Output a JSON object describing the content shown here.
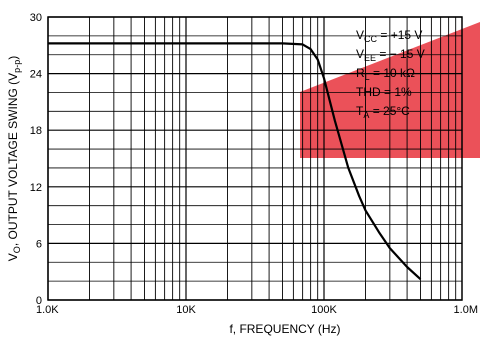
{
  "chart_data": {
    "type": "line",
    "xlabel": "f, FREQUENCY (Hz)",
    "ylabel": "V",
    "ylabel_parts": {
      "main": "V",
      "main_sub": "O",
      "rest": ", OUTPUT VOLTAGE SWING (V",
      "rest_sub": "p-p",
      "close": ")"
    },
    "xscale": "log",
    "xlim": [
      1000,
      1000000
    ],
    "ylim": [
      0,
      30
    ],
    "x_tick_values": [
      1000,
      10000,
      100000,
      1000000
    ],
    "x_tick_labels": [
      "1.0K",
      "10K",
      "100K",
      "1.0M"
    ],
    "y_tick_values": [
      0,
      6,
      12,
      18,
      24,
      30
    ],
    "y_tick_labels": [
      "0",
      "6",
      "12",
      "18",
      "24",
      "30"
    ],
    "grid": true,
    "series": [
      {
        "x": [
          1000,
          10000,
          50000,
          70000,
          80000,
          90000,
          100000,
          120000,
          150000,
          180000,
          200000,
          250000,
          300000,
          400000,
          500000
        ],
        "y": [
          27.2,
          27.2,
          27.2,
          27.1,
          26.6,
          25.5,
          23.5,
          19.0,
          14.0,
          11.0,
          9.5,
          7.2,
          5.5,
          3.5,
          2.2
        ]
      }
    ],
    "annotations": [
      {
        "main": "V",
        "sub": "CC",
        "rest": " =  +15 V"
      },
      {
        "main": "V",
        "sub": "EE",
        "rest": " =  − 15 V"
      },
      {
        "main": "R",
        "sub": "L",
        "rest": " = 10 kΩ"
      },
      {
        "main": "THD",
        "sub": "",
        "rest": " = 1%"
      },
      {
        "main": "T",
        "sub": "A",
        "rest": " = 25°C"
      }
    ],
    "colors": {
      "line": "#000000",
      "grid": "#000000",
      "watermark": "#e8323c"
    }
  }
}
